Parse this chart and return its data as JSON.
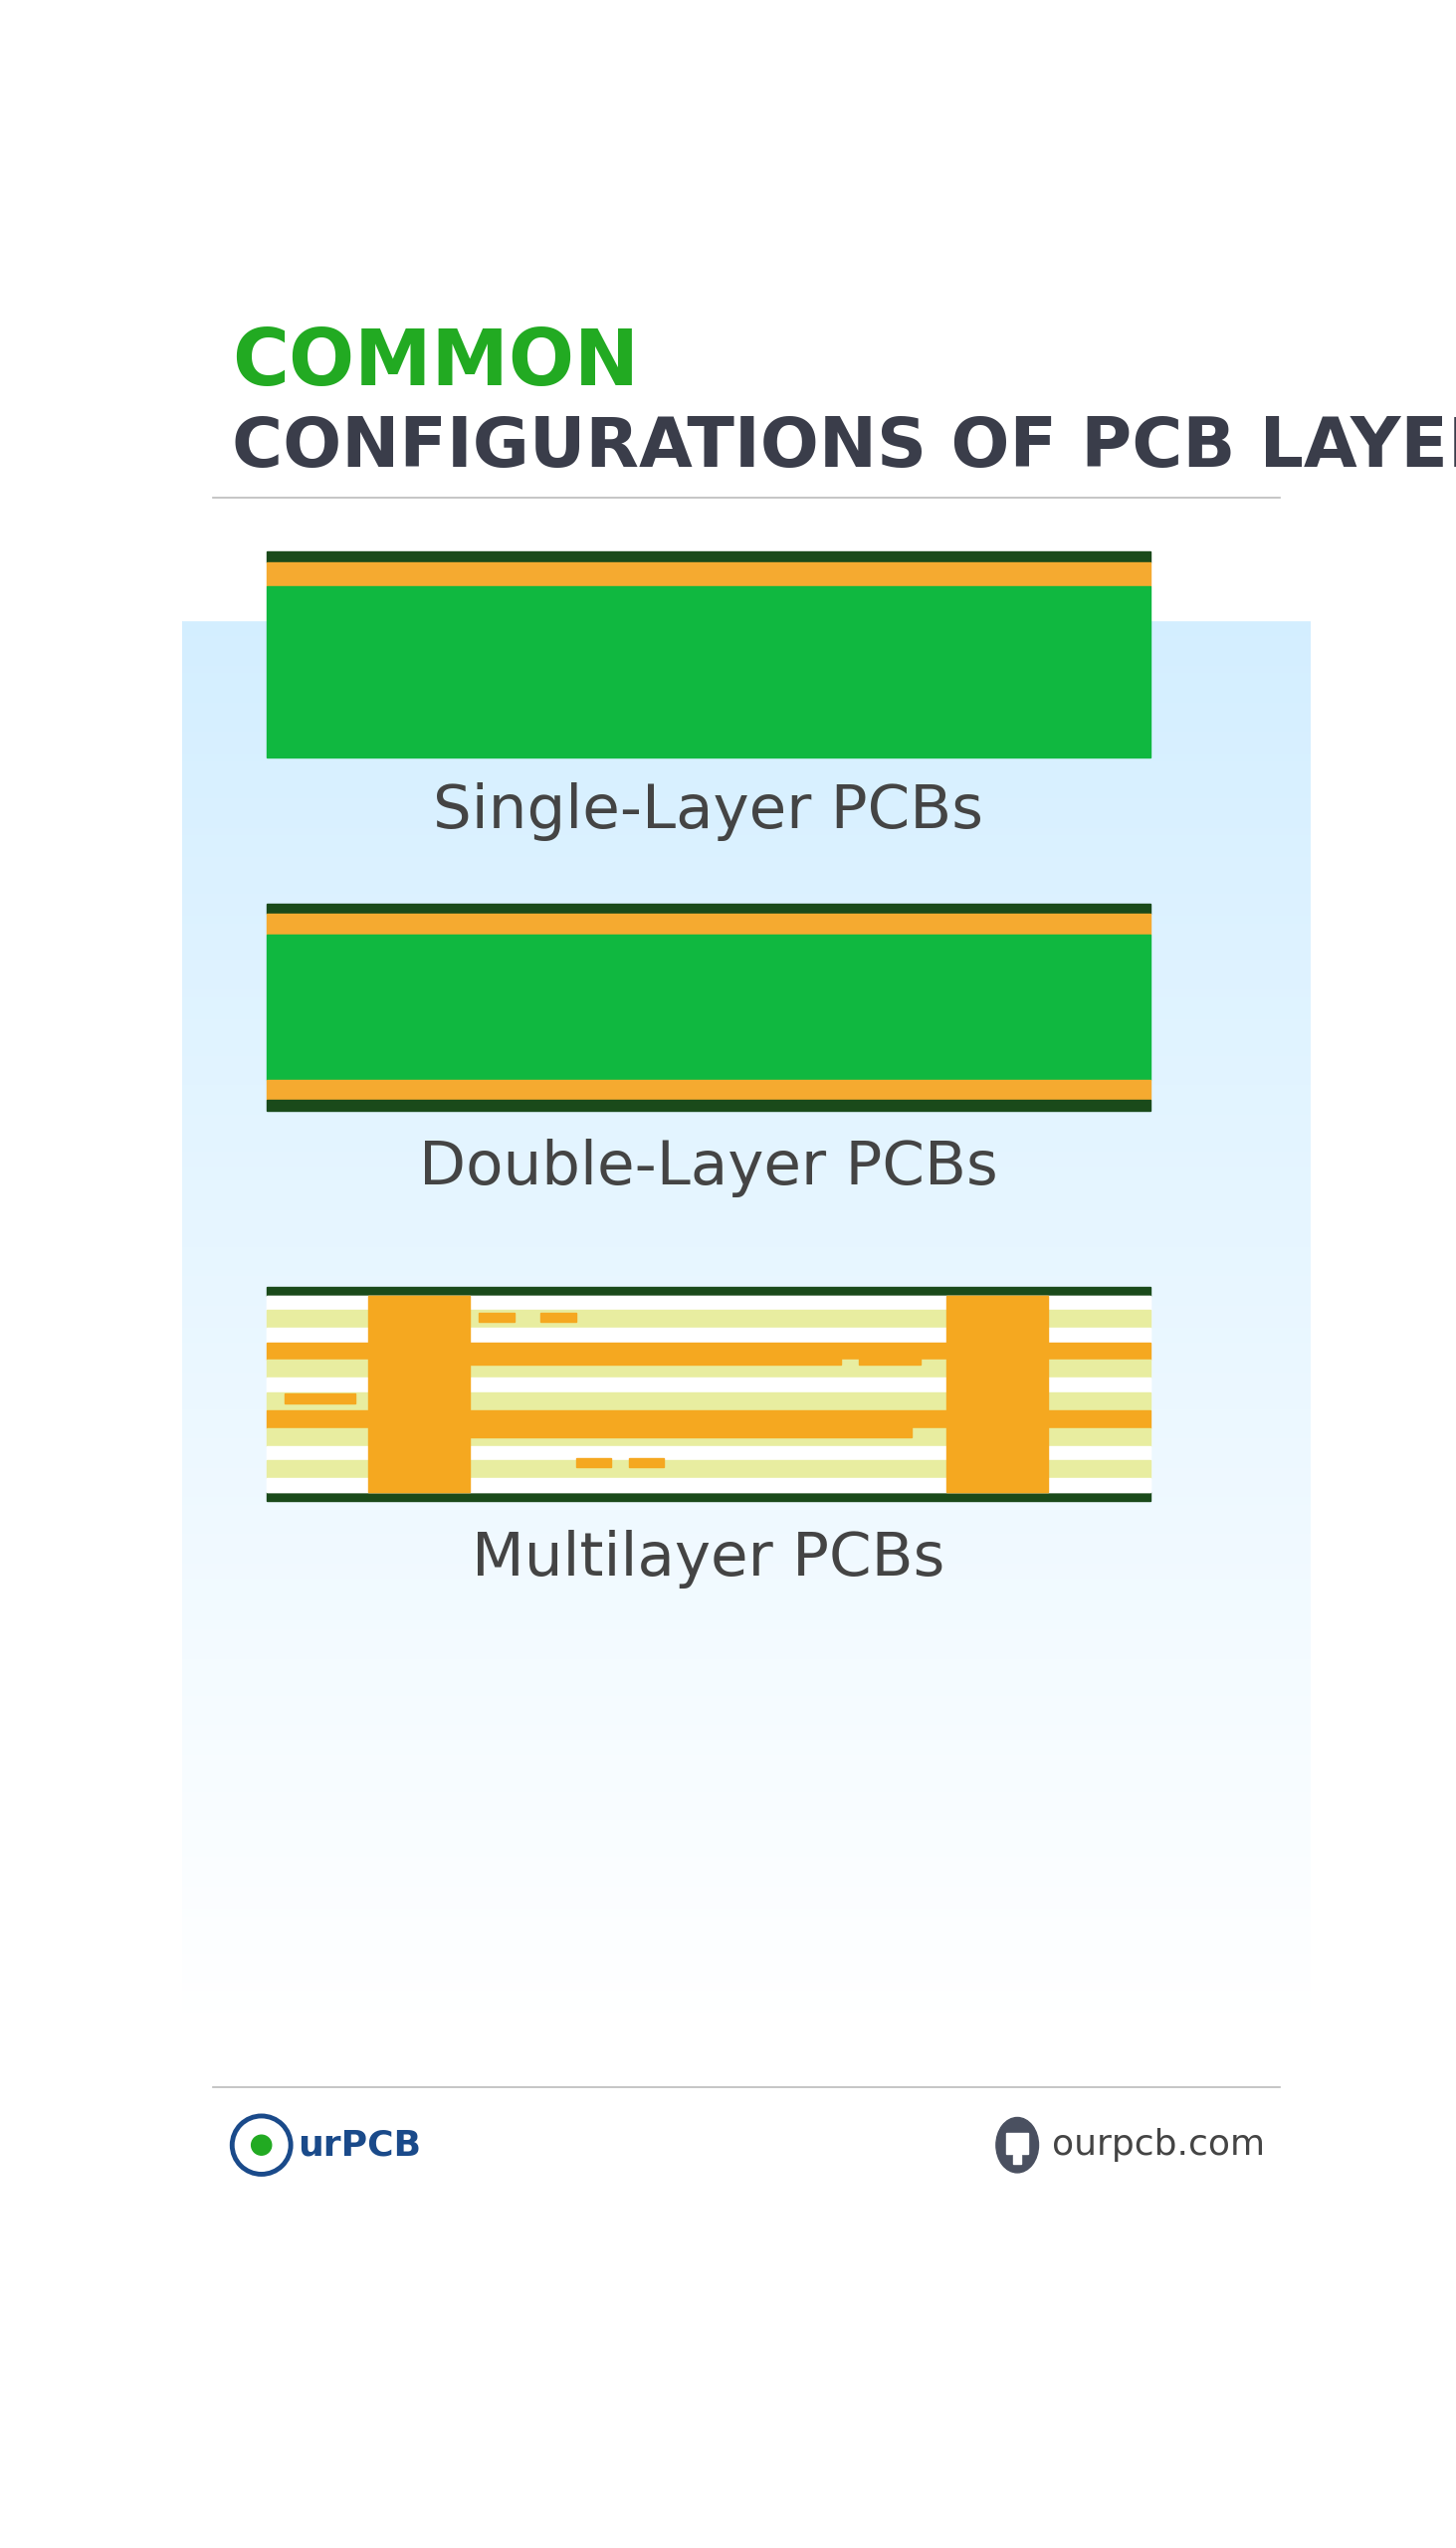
{
  "title_line1": "COMMON",
  "title_line2": "CONFIGURATIONS OF PCB LAYERS",
  "title_line1_color": "#22aa22",
  "title_line2_color": "#3a3d4a",
  "bg_color": "#ffffff",
  "bg_gradient_top": "#ffffff",
  "bg_gradient_bottom": "#ddeef5",
  "divider_color": "#bbbbbb",
  "dark_green": "#1a4a1a",
  "gold": "#f5aa30",
  "pcb_green": "#10b840",
  "white_inner": "#ffffff",
  "light_yellow": "#e8eda0",
  "orange_trace": "#f5a820",
  "section_labels": [
    "Single-Layer PCBs",
    "Double-Layer PCBs",
    "Multilayer PCBs"
  ],
  "label_color": "#444444",
  "footer_text": "ourpcb.com",
  "footer_color": "#444444",
  "logo_blue": "#1a4a8a",
  "logo_green": "#22aa22"
}
